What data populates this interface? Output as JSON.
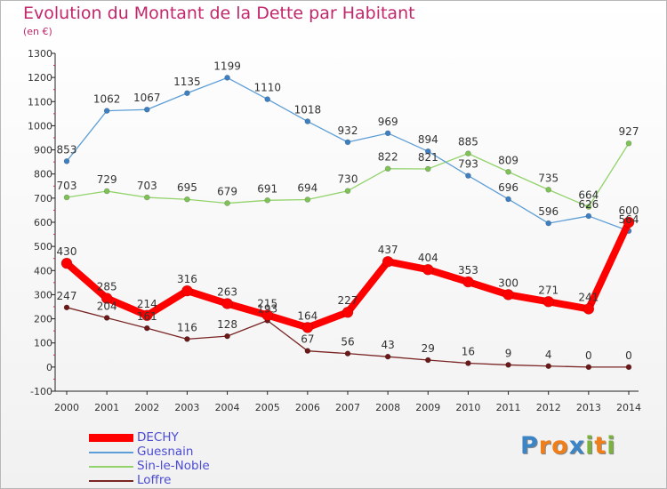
{
  "title": "Evolution du Montant de la Dette par Habitant",
  "subtitle": "(en €)",
  "brand": {
    "letters": [
      "P",
      "r",
      "o",
      "x",
      "i",
      "t",
      "i"
    ],
    "colors": [
      "#3b84c6",
      "#f07f1a",
      "#f07f1a",
      "#3b84c6",
      "#7ab23d",
      "#f07f1a",
      "#7ab23d"
    ]
  },
  "chart_data": {
    "type": "line",
    "title": "Evolution du Montant de la Dette par Habitant",
    "ylabel": "(en €)",
    "xlabel": "",
    "x": [
      "2000",
      "2001",
      "2002",
      "2003",
      "2004",
      "2005",
      "2006",
      "2007",
      "2008",
      "2009",
      "2010",
      "2011",
      "2012",
      "2013",
      "2014"
    ],
    "ylim": [
      -100,
      1300
    ],
    "yticks": [
      "-100",
      "0",
      "100",
      "200",
      "300",
      "400",
      "500",
      "600",
      "700",
      "800",
      "900",
      "1000",
      "1100",
      "1200",
      "1300"
    ],
    "grid": false,
    "legend_position": "bottom-left",
    "series": [
      {
        "name": "DECHY",
        "color": "#ff0000",
        "values": [
          430,
          285,
          214,
          316,
          263,
          215,
          164,
          227,
          437,
          404,
          353,
          300,
          271,
          241,
          600
        ]
      },
      {
        "name": "Guesnain",
        "color": "#5e9ed6",
        "values": [
          853,
          1062,
          1067,
          1135,
          1199,
          1110,
          1018,
          932,
          969,
          894,
          793,
          696,
          596,
          626,
          564
        ]
      },
      {
        "name": "Sin-le-Noble",
        "color": "#92d36b",
        "values": [
          703,
          729,
          703,
          695,
          679,
          691,
          694,
          730,
          822,
          821,
          885,
          809,
          735,
          664,
          927
        ]
      },
      {
        "name": "Loffre",
        "color": "#7a2424",
        "values": [
          247,
          204,
          161,
          116,
          128,
          193,
          67,
          56,
          43,
          29,
          16,
          9,
          4,
          0,
          0
        ]
      }
    ]
  }
}
